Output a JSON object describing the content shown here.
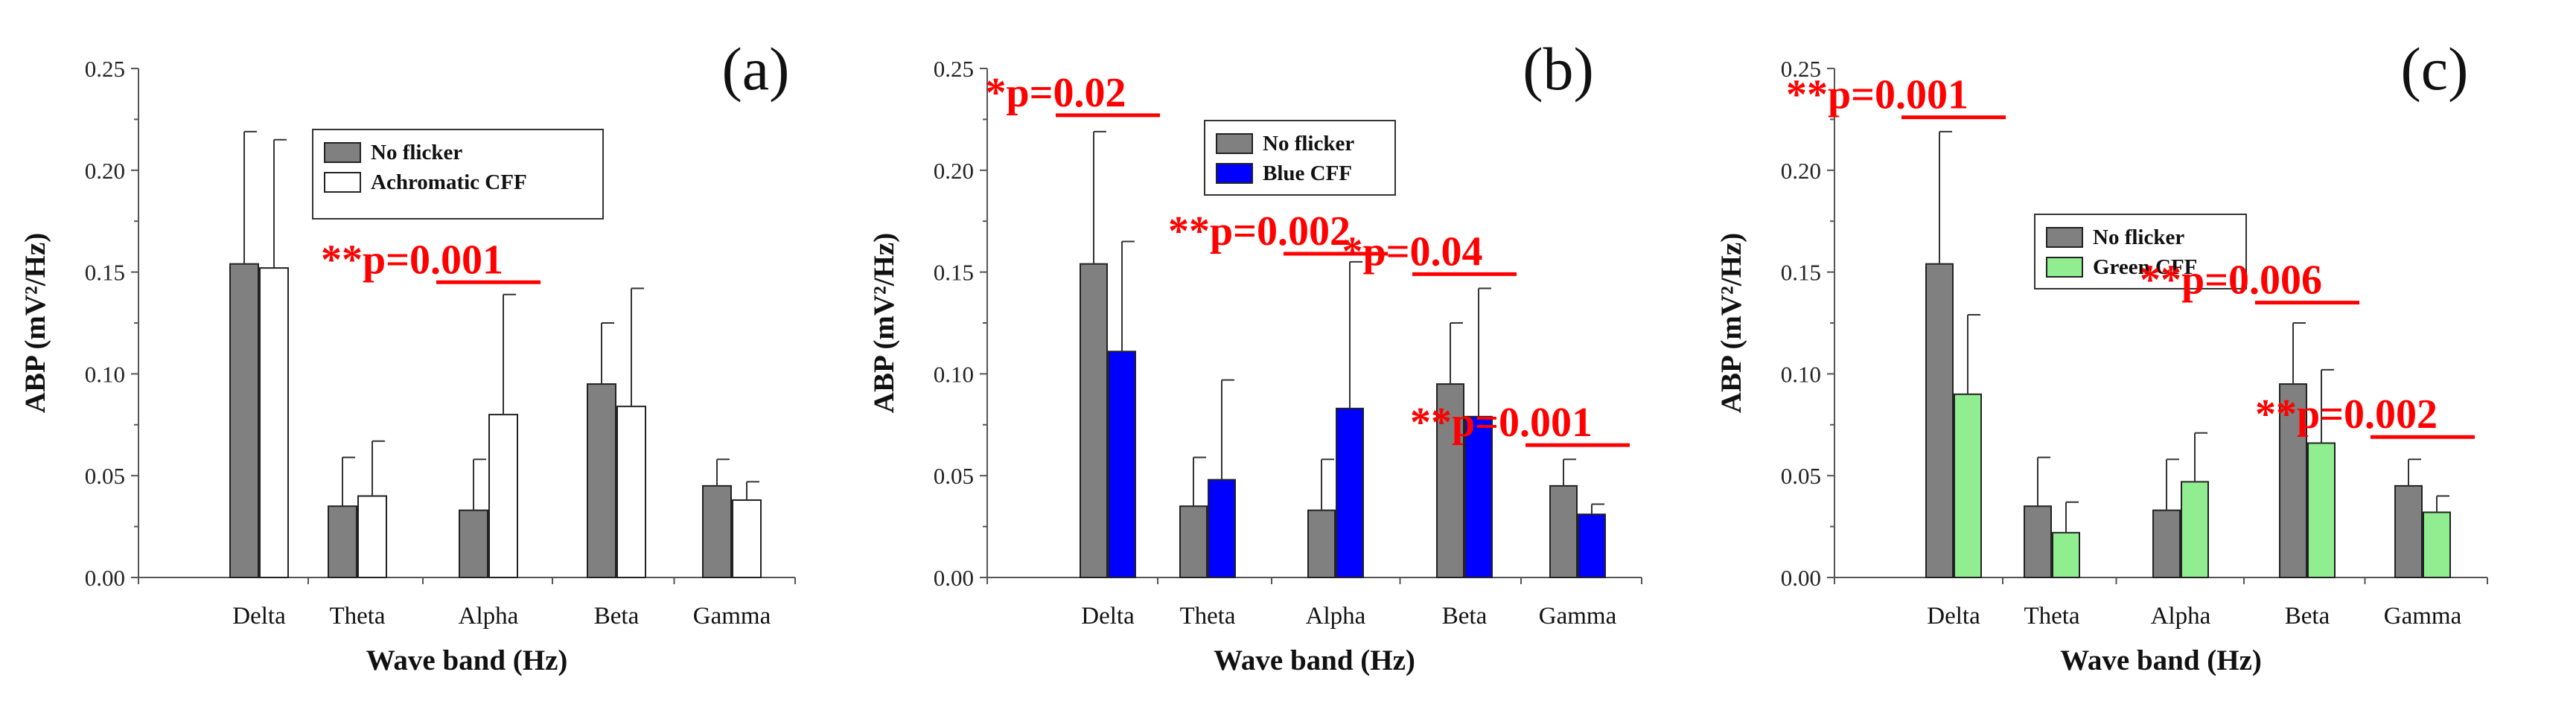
{
  "chart_data": [
    {
      "type": "bar",
      "panel_label": "(a)",
      "categories": [
        "Delta",
        "Theta",
        "Alpha",
        "Beta",
        "Gamma"
      ],
      "series": [
        {
          "name": "No flicker",
          "color": "#808080",
          "values": [
            0.154,
            0.035,
            0.033,
            0.095,
            0.045
          ],
          "errors": [
            0.065,
            0.024,
            0.025,
            0.03,
            0.013
          ]
        },
        {
          "name": "Achromatic CFF",
          "color": "#ffffff",
          "values": [
            0.152,
            0.04,
            0.08,
            0.084,
            0.038
          ],
          "errors": [
            0.063,
            0.027,
            0.059,
            0.058,
            0.009
          ]
        }
      ],
      "xlabel": "Wave band (Hz)",
      "ylabel": "ABP (mV²/Hz)",
      "ylim": [
        0,
        0.25
      ],
      "yticks": [
        "0.00",
        "0.05",
        "0.10",
        "0.15",
        "0.20",
        "0.25"
      ],
      "legend_position": "top-center",
      "annotations": [
        {
          "stars": "**",
          "text": "p=0.001",
          "category": "Alpha",
          "level": 0.145
        }
      ]
    },
    {
      "type": "bar",
      "panel_label": "(b)",
      "categories": [
        "Delta",
        "Theta",
        "Alpha",
        "Beta",
        "Gamma"
      ],
      "series": [
        {
          "name": "No flicker",
          "color": "#808080",
          "values": [
            0.154,
            0.035,
            0.033,
            0.095,
            0.045
          ],
          "errors": [
            0.065,
            0.024,
            0.025,
            0.03,
            0.013
          ]
        },
        {
          "name": "Blue CFF",
          "color": "#0000ff",
          "values": [
            0.111,
            0.048,
            0.083,
            0.079,
            0.031
          ],
          "errors": [
            0.054,
            0.049,
            0.072,
            0.063,
            0.005
          ]
        }
      ],
      "xlabel": "Wave band (Hz)",
      "ylabel": "ABP (mV²/Hz)",
      "ylim": [
        0,
        0.25
      ],
      "yticks": [
        "0.00",
        "0.05",
        "0.10",
        "0.15",
        "0.20",
        "0.25"
      ],
      "legend_position": "top-left",
      "annotations": [
        {
          "stars": "*",
          "text": "p=0.02",
          "category": "Delta",
          "level": 0.227
        },
        {
          "stars": "**",
          "text": "p=0.002",
          "category": "Alpha",
          "level": 0.159
        },
        {
          "stars": "*",
          "text": "p=0.04",
          "category": "Beta",
          "level": 0.149
        },
        {
          "stars": "**",
          "text": "p=0.001",
          "category": "Gamma",
          "level": 0.065
        }
      ]
    },
    {
      "type": "bar",
      "panel_label": "(c)",
      "categories": [
        "Delta",
        "Theta",
        "Alpha",
        "Beta",
        "Gamma"
      ],
      "series": [
        {
          "name": "No flicker",
          "color": "#808080",
          "values": [
            0.154,
            0.035,
            0.033,
            0.095,
            0.045
          ],
          "errors": [
            0.065,
            0.024,
            0.025,
            0.03,
            0.013
          ]
        },
        {
          "name": "Green CFF",
          "color": "#90ee90",
          "values": [
            0.09,
            0.022,
            0.047,
            0.066,
            0.032
          ],
          "errors": [
            0.039,
            0.015,
            0.024,
            0.036,
            0.008
          ]
        }
      ],
      "xlabel": "Wave band (Hz)",
      "ylabel": "ABP (mV²/Hz)",
      "ylim": [
        0,
        0.25
      ],
      "yticks": [
        "0.00",
        "0.05",
        "0.10",
        "0.15",
        "0.20",
        "0.25"
      ],
      "legend_position": "center",
      "annotations": [
        {
          "stars": "**",
          "text": "p=0.001",
          "category": "Delta",
          "level": 0.226
        },
        {
          "stars": "**",
          "text": "p=0.006",
          "category": "Beta",
          "level": 0.135
        },
        {
          "stars": "**",
          "text": "p=0.002",
          "category": "Gamma",
          "level": 0.069
        }
      ]
    }
  ]
}
